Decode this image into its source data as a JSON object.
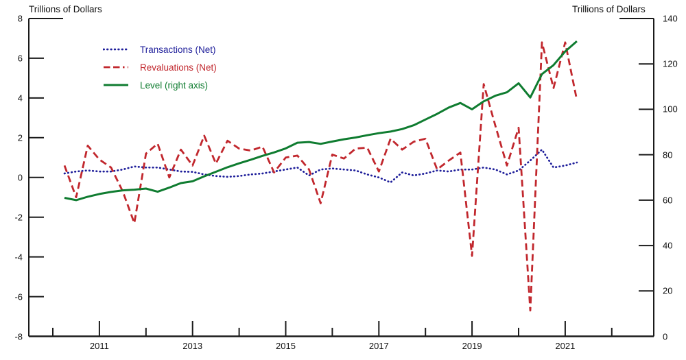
{
  "chart_data": {
    "type": "line",
    "title": "",
    "left_axis": {
      "label": "Trillions of Dollars",
      "min": -8,
      "max": 8,
      "tick_step": 2,
      "ticks": [
        8,
        6,
        4,
        2,
        0,
        -2,
        -4,
        -6,
        -8
      ]
    },
    "right_axis": {
      "label": "Trillions of Dollars",
      "min": 0,
      "max": 140,
      "tick_step": 20,
      "ticks": [
        140,
        120,
        100,
        80,
        60,
        40,
        20,
        0
      ]
    },
    "x_axis": {
      "major_tick_years": [
        2011,
        2013,
        2015,
        2017,
        2019,
        2021
      ],
      "minor_tick_years": [
        2010,
        2012,
        2014,
        2016,
        2018,
        2020,
        2022
      ],
      "range_start": 2009.5,
      "range_end": 2022.9
    },
    "grid": false,
    "legend_position": "top-left-inside",
    "x_quarters": [
      "2010 Q1",
      "2010 Q2",
      "2010 Q3",
      "2010 Q4",
      "2011 Q1",
      "2011 Q2",
      "2011 Q3",
      "2011 Q4",
      "2012 Q1",
      "2012 Q2",
      "2012 Q3",
      "2012 Q4",
      "2013 Q1",
      "2013 Q2",
      "2013 Q3",
      "2013 Q4",
      "2014 Q1",
      "2014 Q2",
      "2014 Q3",
      "2014 Q4",
      "2015 Q1",
      "2015 Q2",
      "2015 Q3",
      "2015 Q4",
      "2016 Q1",
      "2016 Q2",
      "2016 Q3",
      "2016 Q4",
      "2017 Q1",
      "2017 Q2",
      "2017 Q3",
      "2017 Q4",
      "2018 Q1",
      "2018 Q2",
      "2018 Q3",
      "2018 Q4",
      "2019 Q1",
      "2019 Q2",
      "2019 Q3",
      "2019 Q4",
      "2020 Q1",
      "2020 Q2",
      "2020 Q3",
      "2020 Q4",
      "2021 Q1"
    ],
    "series": [
      {
        "name": "Transactions (Net)",
        "slug": "transactions",
        "axis": "left",
        "color": "#1e1e9a",
        "line_style": "dotted",
        "values": [
          0.2,
          0.3,
          0.35,
          0.3,
          0.3,
          0.4,
          0.55,
          0.5,
          0.5,
          0.4,
          0.3,
          0.28,
          0.15,
          0.07,
          0.03,
          0.07,
          0.15,
          0.2,
          0.3,
          0.4,
          0.5,
          0.1,
          0.4,
          0.45,
          0.4,
          0.35,
          0.15,
          0.0,
          -0.25,
          0.25,
          0.1,
          0.2,
          0.35,
          0.3,
          0.4,
          0.4,
          0.5,
          0.4,
          0.15,
          0.35,
          0.85,
          1.4,
          0.5,
          0.6,
          0.75
        ]
      },
      {
        "name": "Revaluations (Net)",
        "slug": "revaluations",
        "axis": "left",
        "color": "#c1272d",
        "line_style": "dashed",
        "values": [
          0.6,
          -1.0,
          1.6,
          0.9,
          0.5,
          -0.7,
          -2.3,
          1.2,
          1.7,
          0.0,
          1.4,
          0.6,
          2.1,
          0.7,
          1.85,
          1.45,
          1.35,
          1.55,
          0.25,
          1.0,
          1.1,
          0.4,
          -1.3,
          1.15,
          0.95,
          1.45,
          1.5,
          0.3,
          1.95,
          1.4,
          1.8,
          1.95,
          0.4,
          0.85,
          1.25,
          -3.95,
          4.7,
          2.6,
          0.6,
          2.5,
          -6.7,
          6.8,
          4.5,
          6.8,
          3.9
        ]
      },
      {
        "name": "Level (right axis)",
        "slug": "level",
        "axis": "right",
        "color": "#0f7c30",
        "line_style": "solid",
        "values": [
          61,
          60,
          61.5,
          62.7,
          63.6,
          64.3,
          64.6,
          65.1,
          63.7,
          65.5,
          67.5,
          68.3,
          70.5,
          72.5,
          74.5,
          76.2,
          77.8,
          79.5,
          81,
          82.8,
          85.3,
          85.6,
          84.8,
          85.8,
          86.8,
          87.6,
          88.6,
          89.5,
          90.2,
          91.3,
          93,
          95.5,
          98,
          100.8,
          102.8,
          100,
          103.5,
          106,
          107.5,
          111.5,
          105.2,
          115.5,
          119.5,
          125.5,
          130
        ]
      }
    ],
    "colors": {
      "axis": "#1a1a1a",
      "background": "#ffffff"
    }
  }
}
